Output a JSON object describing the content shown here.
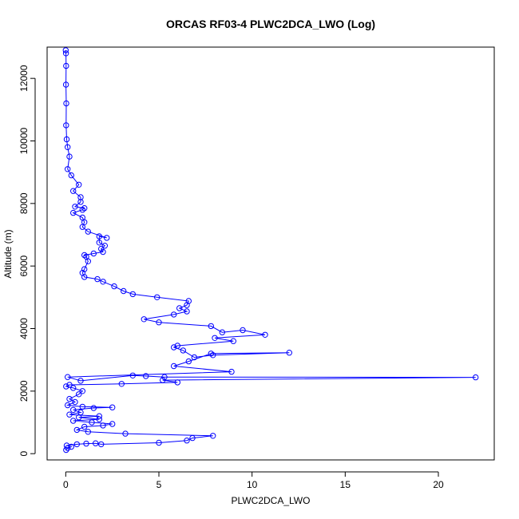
{
  "chart_data": {
    "type": "line",
    "title": "ORCAS RF03-4 PLWC2DCA_LWO (Log)",
    "xlabel": "PLWC2DCA_LWO",
    "ylabel": "Altitude (m)",
    "xlim": [
      -1,
      23
    ],
    "ylim": [
      -200,
      13000
    ],
    "xticks": [
      0,
      5,
      10,
      15,
      20
    ],
    "yticks": [
      0,
      2000,
      4000,
      6000,
      8000,
      10000,
      12000
    ],
    "grid": false,
    "color": "#0000ff",
    "marker": "open-circle",
    "series": [
      {
        "points": [
          [
            0.02,
            120
          ],
          [
            0.1,
            180
          ],
          [
            0.3,
            220
          ],
          [
            0.05,
            260
          ],
          [
            0.6,
            300
          ],
          [
            1.1,
            320
          ],
          [
            1.6,
            330
          ],
          [
            1.9,
            300
          ],
          [
            5.0,
            350
          ],
          [
            6.5,
            420
          ],
          [
            6.8,
            500
          ],
          [
            7.9,
            570
          ],
          [
            3.2,
            640
          ],
          [
            1.2,
            700
          ],
          [
            0.6,
            760
          ],
          [
            1.0,
            860
          ],
          [
            2.0,
            900
          ],
          [
            2.5,
            950
          ],
          [
            1.4,
            1000
          ],
          [
            0.4,
            1050
          ],
          [
            1.8,
            1100
          ],
          [
            0.7,
            1160
          ],
          [
            1.8,
            1200
          ],
          [
            0.2,
            1250
          ],
          [
            0.8,
            1320
          ],
          [
            0.4,
            1400
          ],
          [
            1.5,
            1460
          ],
          [
            2.5,
            1480
          ],
          [
            0.9,
            1500
          ],
          [
            0.1,
            1550
          ],
          [
            0.5,
            1650
          ],
          [
            0.2,
            1750
          ],
          [
            0.7,
            1900
          ],
          [
            0.9,
            2000
          ],
          [
            0.4,
            2100
          ],
          [
            0.02,
            2150
          ],
          [
            0.2,
            2200
          ],
          [
            3.0,
            2230
          ],
          [
            6.0,
            2280
          ],
          [
            5.2,
            2350
          ],
          [
            22.0,
            2440
          ],
          [
            5.3,
            2450
          ],
          [
            4.3,
            2480
          ],
          [
            3.6,
            2500
          ],
          [
            0.8,
            2330
          ],
          [
            0.1,
            2450
          ],
          [
            8.9,
            2620
          ],
          [
            5.8,
            2800
          ],
          [
            6.6,
            2950
          ],
          [
            7.8,
            3200
          ],
          [
            12.0,
            3230
          ],
          [
            7.9,
            3150
          ],
          [
            6.9,
            3080
          ],
          [
            6.3,
            3300
          ],
          [
            5.8,
            3400
          ],
          [
            6.0,
            3450
          ],
          [
            9.0,
            3600
          ],
          [
            8.0,
            3700
          ],
          [
            10.7,
            3800
          ],
          [
            9.5,
            3950
          ],
          [
            8.4,
            3880
          ],
          [
            7.8,
            4080
          ],
          [
            5.0,
            4200
          ],
          [
            4.2,
            4300
          ],
          [
            5.8,
            4450
          ],
          [
            6.5,
            4550
          ],
          [
            6.1,
            4650
          ],
          [
            6.5,
            4750
          ],
          [
            6.6,
            4880
          ],
          [
            4.9,
            5000
          ],
          [
            3.6,
            5100
          ],
          [
            3.1,
            5200
          ],
          [
            2.6,
            5350
          ],
          [
            2.0,
            5500
          ],
          [
            1.7,
            5580
          ],
          [
            1.0,
            5650
          ],
          [
            0.9,
            5780
          ],
          [
            1.0,
            5900
          ],
          [
            1.2,
            6150
          ],
          [
            1.1,
            6300
          ],
          [
            1.0,
            6350
          ],
          [
            1.5,
            6400
          ],
          [
            2.0,
            6450
          ],
          [
            1.9,
            6550
          ],
          [
            2.1,
            6650
          ],
          [
            1.8,
            6750
          ],
          [
            1.8,
            6950
          ],
          [
            2.2,
            6900
          ],
          [
            1.2,
            7100
          ],
          [
            0.9,
            7250
          ],
          [
            1.0,
            7400
          ],
          [
            0.9,
            7550
          ],
          [
            0.4,
            7700
          ],
          [
            0.9,
            7800
          ],
          [
            1.0,
            7850
          ],
          [
            0.5,
            7900
          ],
          [
            0.8,
            8050
          ],
          [
            0.8,
            8200
          ],
          [
            0.4,
            8400
          ],
          [
            0.7,
            8600
          ],
          [
            0.3,
            8900
          ],
          [
            0.1,
            9100
          ],
          [
            0.2,
            9500
          ],
          [
            0.1,
            9800
          ],
          [
            0.05,
            10050
          ],
          [
            0.02,
            10500
          ],
          [
            0.03,
            11200
          ],
          [
            0.01,
            11800
          ],
          [
            0.02,
            12400
          ],
          [
            0.01,
            12800
          ],
          [
            0.0,
            12900
          ]
        ]
      }
    ]
  }
}
